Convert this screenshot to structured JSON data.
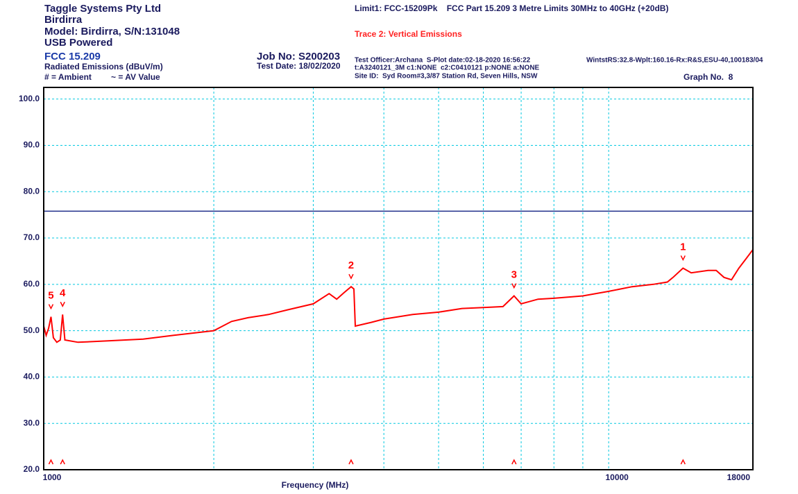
{
  "header": {
    "company": "Taggle Systems Pty Ltd",
    "product": "Birdirra",
    "model": "Model: Birdirra, S/N:131048",
    "power": "USB Powered",
    "standard": "FCC 15.209",
    "measurement": "Radiated Emissions (dBuV/m)",
    "legend_ambient": "# = Ambient",
    "legend_av": "~ = AV Value",
    "job": "Job No: S200203",
    "test_date": "Test Date: 18/02/2020",
    "limit_info": "Limit1: FCC-15209Pk    FCC Part 15.209 3 Metre Limits 30MHz to 40GHz (+20dB)",
    "trace_info": "Trace 2: Vertical Emissions",
    "officer": "Test Officer:Archana  S-Plot date:02-18-2020 16:56:22",
    "setup": "t:A3240121_3M c1:NONE  c2:C0410121 p:NONE a:NONE",
    "site": "Site ID:  Syd Room#3,3/87 Station Rd, Seven Hills, NSW",
    "software": "WintstRS:32.8-Wplt:160.16-Rx:R&S,ESU-40,100183/04",
    "graph_no": "Graph No.  8"
  },
  "chart_data": {
    "type": "line",
    "x_label": "Frequency (MHz)",
    "xscale": "log",
    "xlim": [
      1000,
      18000
    ],
    "xticks": [
      1000,
      10000,
      18000
    ],
    "xgrid": [
      2000,
      3000,
      4000,
      5000,
      6000,
      7000,
      8000,
      9000
    ],
    "ylim": [
      20,
      102.5
    ],
    "yticks": [
      {
        "value": 20,
        "label": "20.0"
      },
      {
        "value": 30,
        "label": "30.0"
      },
      {
        "value": 40,
        "label": "40.0"
      },
      {
        "value": 50,
        "label": "50.0"
      },
      {
        "value": 60,
        "label": "60.0"
      },
      {
        "value": 70,
        "label": "70.0"
      },
      {
        "value": 80,
        "label": "80.0"
      },
      {
        "value": 90,
        "label": "90.0"
      },
      {
        "value": 100,
        "label": "100.0"
      }
    ],
    "grid": true,
    "grid_color": "#00c8e0",
    "limit": {
      "value": 75.8,
      "color": "#1f2d8a"
    },
    "series": [
      {
        "color": "#ff0000",
        "x": [
          1000,
          1010,
          1020,
          1030,
          1040,
          1055,
          1070,
          1080,
          1090,
          1150,
          1300,
          1500,
          1700,
          2000,
          2150,
          2300,
          2500,
          2700,
          3000,
          3200,
          3300,
          3400,
          3500,
          3540,
          3560,
          3800,
          4000,
          4500,
          5000,
          5500,
          6000,
          6500,
          6800,
          7000,
          7500,
          8000,
          9000,
          10000,
          11000,
          12000,
          12700,
          13000,
          13540,
          14000,
          15000,
          15500,
          16000,
          16500,
          17000,
          17500,
          18000
        ],
        "values": [
          51,
          49,
          50.5,
          53,
          48.5,
          47.5,
          48,
          53.5,
          48,
          47.5,
          47.8,
          48.2,
          49,
          50,
          52,
          52.8,
          53.5,
          54.5,
          55.8,
          58,
          56.8,
          58.2,
          59.5,
          59,
          51,
          51.8,
          52.5,
          53.5,
          54,
          54.8,
          55,
          55.2,
          57.5,
          55.8,
          56.8,
          57,
          57.5,
          58.5,
          59.5,
          60,
          60.5,
          61.5,
          63.5,
          62.5,
          63,
          63,
          61.5,
          61,
          63.5,
          65.5,
          67.5
        ]
      }
    ],
    "markers": [
      {
        "label": "1",
        "x": 13540,
        "y": 63.5
      },
      {
        "label": "2",
        "x": 3500,
        "y": 59.5
      },
      {
        "label": "3",
        "x": 6800,
        "y": 57.5
      },
      {
        "label": "4",
        "x": 1080,
        "y": 53.5
      },
      {
        "label": "5",
        "x": 1030,
        "y": 53
      }
    ]
  }
}
